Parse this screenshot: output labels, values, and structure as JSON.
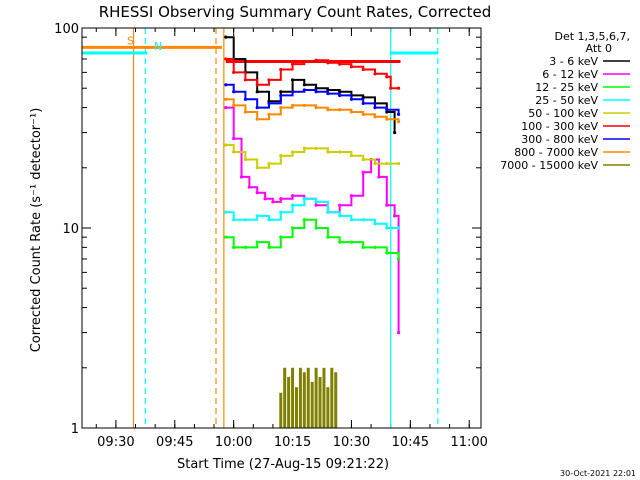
{
  "chart_data": {
    "type": "line",
    "title": "RHESSI Observing Summary Count Rates, Corrected",
    "xlabel": "Start Time (27-Aug-15 09:21:22)",
    "ylabel": "Corrected Count Rate (s⁻¹ detector⁻¹)",
    "y_scale": "log",
    "ylim": [
      1,
      100
    ],
    "y_ticks": [
      {
        "value": 1,
        "label": "1"
      },
      {
        "value": 10,
        "label": "10"
      },
      {
        "value": 100,
        "label": "100"
      }
    ],
    "xlim": [
      "09:21:22",
      "11:03:00"
    ],
    "x_ticks": [
      "09:30",
      "09:45",
      "10:00",
      "10:15",
      "10:30",
      "10:45",
      "11:00"
    ],
    "timestamp": "30-Oct-2021 22:01",
    "legend": {
      "position": "right",
      "header": [
        "Det 1,3,5,6,7,",
        "Att 0"
      ]
    },
    "series": [
      {
        "name": "3 - 6 keV",
        "color": "#000000",
        "x": [
          "09:58",
          "10:00",
          "10:03",
          "10:06",
          "10:09",
          "10:12",
          "10:15",
          "10:18",
          "10:21",
          "10:24",
          "10:27",
          "10:30",
          "10:33",
          "10:36",
          "10:39",
          "10:41"
        ],
        "values": [
          90,
          70,
          60,
          48,
          43,
          48,
          55,
          52,
          50,
          49,
          48,
          46,
          45,
          42,
          38,
          30
        ]
      },
      {
        "name": "6 - 12 keV",
        "color": "#ff00ff",
        "x": [
          "09:58",
          "10:00",
          "10:02",
          "10:04",
          "10:06",
          "10:08",
          "10:10",
          "10:12",
          "10:15",
          "10:18",
          "10:21",
          "10:24",
          "10:27",
          "10:30",
          "10:33",
          "10:35",
          "10:37",
          "10:39",
          "10:41",
          "10:42"
        ],
        "values": [
          40,
          28,
          18,
          16,
          15,
          14,
          13.5,
          14,
          14.5,
          14,
          13,
          12,
          13,
          14.5,
          19,
          22,
          18,
          13,
          11.5,
          3
        ]
      },
      {
        "name": "12 - 25 keV",
        "color": "#00ff00",
        "x": [
          "09:58",
          "10:00",
          "10:03",
          "10:06",
          "10:09",
          "10:12",
          "10:15",
          "10:18",
          "10:21",
          "10:24",
          "10:27",
          "10:30",
          "10:33",
          "10:36",
          "10:39",
          "10:42"
        ],
        "values": [
          9,
          8,
          8,
          8.5,
          8,
          9,
          10,
          11,
          10,
          9,
          8.5,
          8.5,
          8,
          8,
          7.5,
          7
        ]
      },
      {
        "name": "25 - 50 keV",
        "color": "#00ffff",
        "x": [
          "09:58",
          "10:00",
          "10:03",
          "10:06",
          "10:09",
          "10:12",
          "10:15",
          "10:18",
          "10:21",
          "10:24",
          "10:27",
          "10:30",
          "10:33",
          "10:36",
          "10:39",
          "10:42"
        ],
        "values": [
          12,
          11,
          11,
          11.5,
          11,
          12,
          13,
          14,
          13.5,
          12,
          11.5,
          11,
          11,
          10.5,
          10,
          10
        ]
      },
      {
        "name": "50 - 100 keV",
        "color": "#cccc00",
        "x": [
          "09:58",
          "10:00",
          "10:03",
          "10:06",
          "10:09",
          "10:12",
          "10:15",
          "10:18",
          "10:21",
          "10:24",
          "10:27",
          "10:30",
          "10:33",
          "10:36",
          "10:39",
          "10:42"
        ],
        "values": [
          26,
          24,
          22,
          20,
          21,
          23,
          24,
          25,
          25,
          24,
          24,
          23,
          22,
          21,
          21,
          21
        ]
      },
      {
        "name": "100 - 300 keV",
        "color": "#ff0000",
        "x": [
          "09:58",
          "10:00",
          "10:03",
          "10:06",
          "10:09",
          "10:12",
          "10:15",
          "10:18",
          "10:21",
          "10:24",
          "10:27",
          "10:30",
          "10:33",
          "10:36",
          "10:39",
          "10:40",
          "10:42"
        ],
        "values": [
          70,
          60,
          55,
          52,
          55,
          62,
          66,
          68,
          69,
          67,
          66,
          64,
          62,
          59,
          57,
          50,
          50
        ]
      },
      {
        "name": "300 - 800 keV",
        "color": "#0000ff",
        "x": [
          "09:58",
          "10:00",
          "10:03",
          "10:06",
          "10:09",
          "10:12",
          "10:15",
          "10:18",
          "10:21",
          "10:24",
          "10:27",
          "10:30",
          "10:33",
          "10:36",
          "10:39",
          "10:42"
        ],
        "values": [
          52,
          48,
          44,
          40,
          42,
          46,
          48,
          49,
          48,
          47,
          46,
          44,
          42,
          40,
          39,
          37
        ]
      },
      {
        "name": "800 - 7000 keV",
        "color": "#ff8800",
        "x": [
          "09:58",
          "10:00",
          "10:03",
          "10:06",
          "10:09",
          "10:12",
          "10:15",
          "10:18",
          "10:21",
          "10:24",
          "10:27",
          "10:30",
          "10:33",
          "10:36",
          "10:39",
          "10:42"
        ],
        "values": [
          44,
          41,
          38,
          35,
          37,
          40,
          41,
          41,
          40,
          39,
          39,
          38,
          37,
          36,
          35,
          34
        ]
      },
      {
        "name": "7000 - 15000 keV",
        "color": "#808000",
        "x": [
          "10:12",
          "10:13",
          "10:14",
          "10:15",
          "10:16",
          "10:17",
          "10:18",
          "10:19",
          "10:20",
          "10:21",
          "10:22",
          "10:23",
          "10:24",
          "10:25",
          "10:26"
        ],
        "values": [
          1.5,
          2,
          1.8,
          2,
          1.6,
          2,
          1.9,
          2,
          1.7,
          2,
          1.8,
          2,
          1.6,
          2,
          1.9
        ]
      }
    ],
    "flags": [
      {
        "label": "S",
        "color": "#ff8800",
        "x_start": "09:21:22",
        "x_end": "09:57:00",
        "level": 80
      },
      {
        "label": "N",
        "color": "#00ffff",
        "x_start": "09:21:22",
        "x_end": "09:38:00",
        "level": 75
      },
      {
        "label": "",
        "color": "#ff0000",
        "x_start": "09:58:00",
        "x_end": "10:42:30",
        "level": 68
      },
      {
        "label": "",
        "color": "#00ffff",
        "x_start": "10:40:00",
        "x_end": "10:52:00",
        "level": 75
      }
    ],
    "markers": [
      {
        "x": "09:34:30",
        "color": "#ff8800",
        "style": "solid"
      },
      {
        "x": "09:37:30",
        "color": "#00ffff",
        "style": "dashed"
      },
      {
        "x": "09:55:30",
        "color": "#ff8800",
        "style": "dashed"
      },
      {
        "x": "09:57:30",
        "color": "#ff8800",
        "style": "solid"
      },
      {
        "x": "10:40:00",
        "color": "#00ffff",
        "style": "solid"
      },
      {
        "x": "10:52:00",
        "color": "#00ffff",
        "style": "dashed"
      }
    ]
  }
}
